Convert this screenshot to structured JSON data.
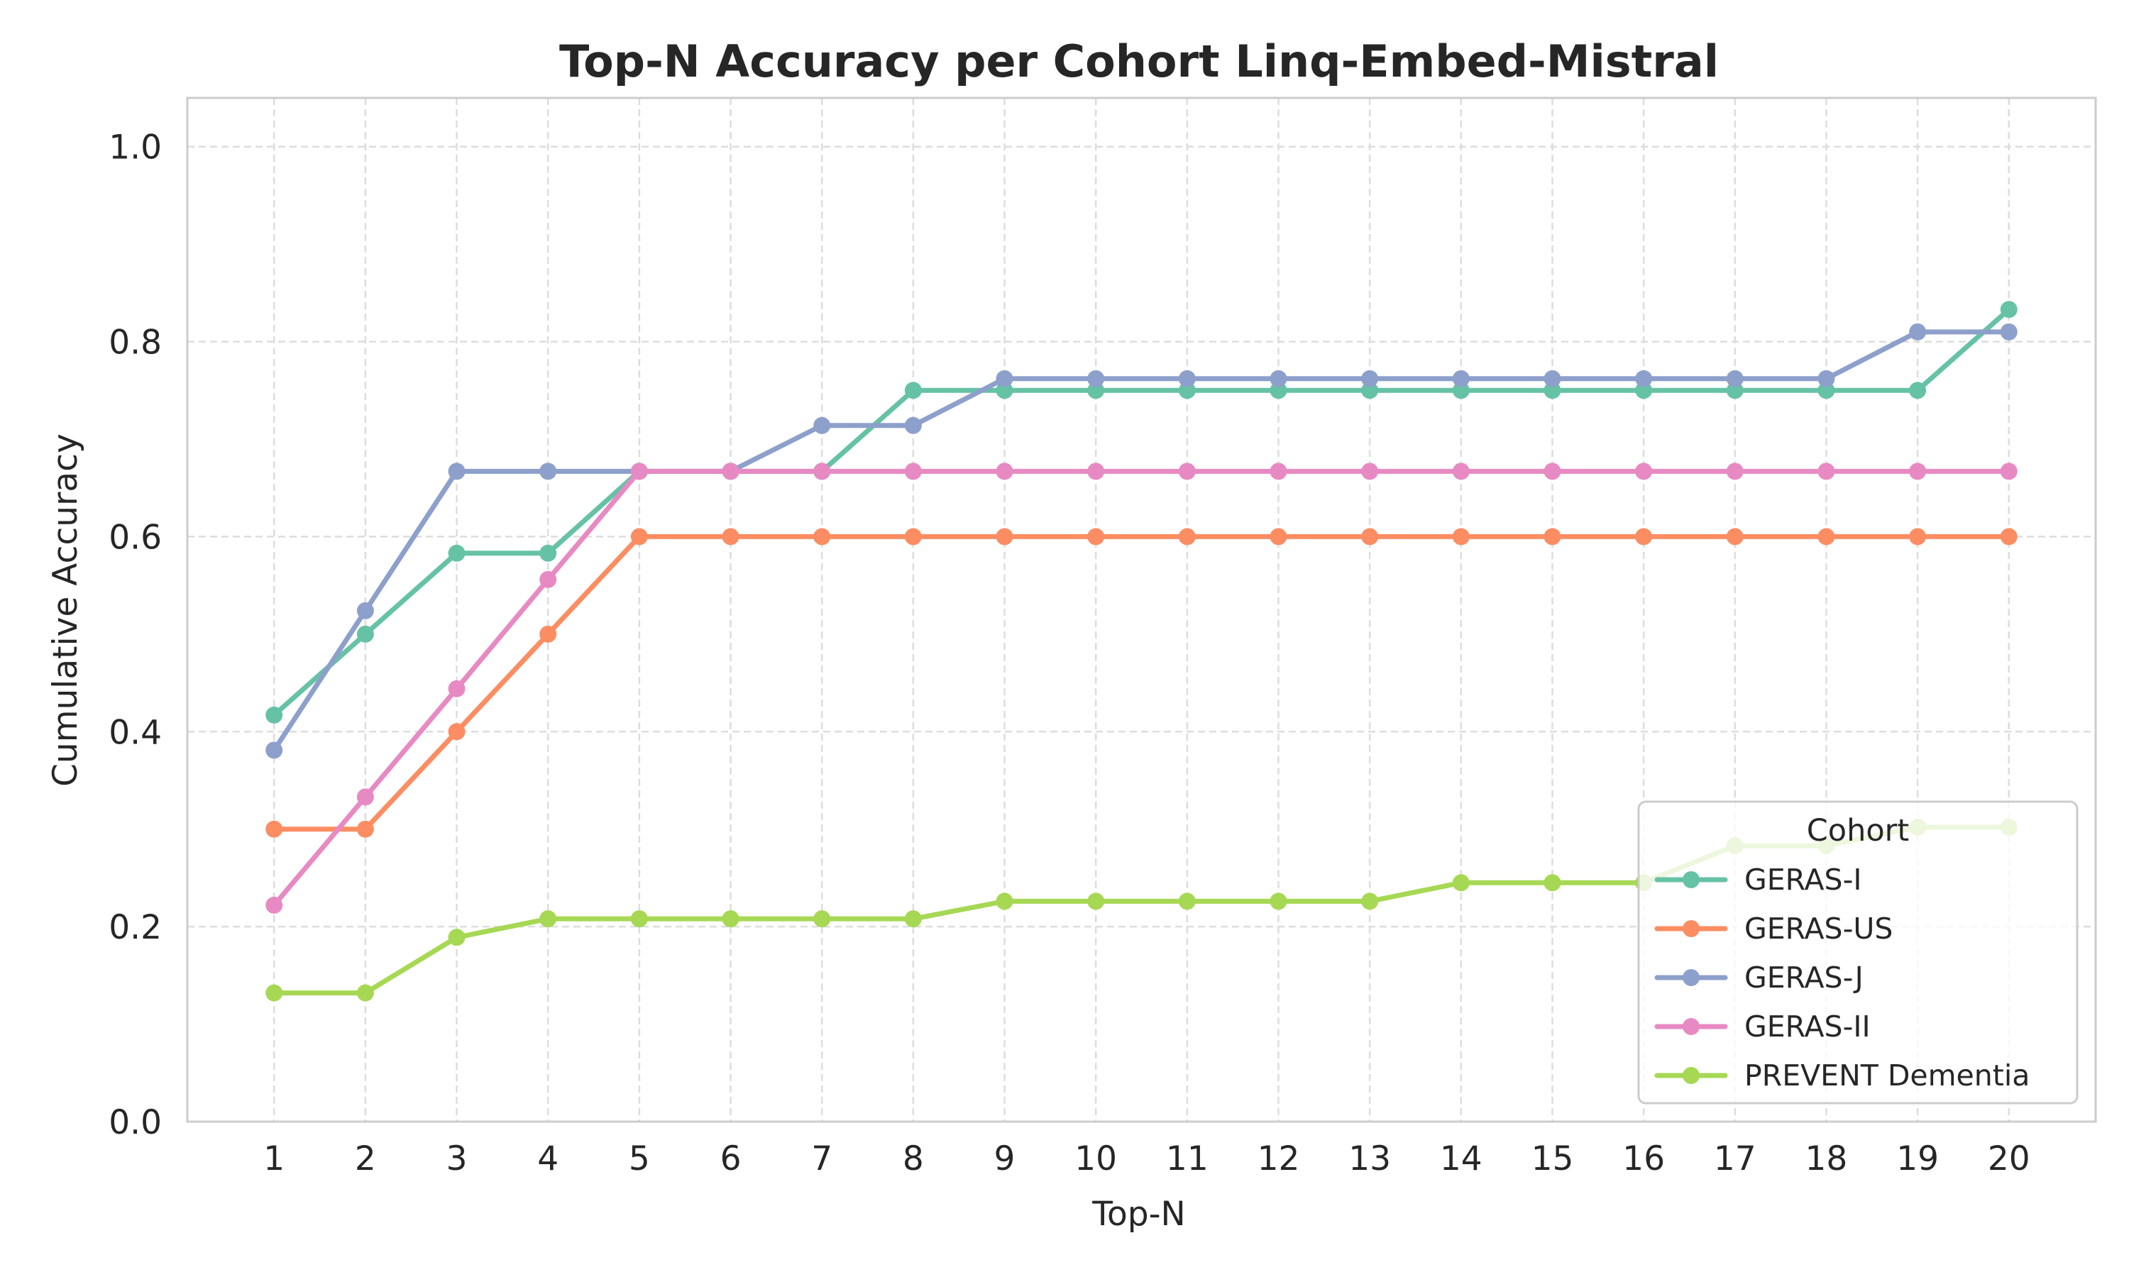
{
  "chart_data": {
    "type": "line",
    "title": "Top-N Accuracy per Cohort Linq-Embed-Mistral",
    "xlabel": "Top-N",
    "ylabel": "Cumulative Accuracy",
    "x": [
      1,
      2,
      3,
      4,
      5,
      6,
      7,
      8,
      9,
      10,
      11,
      12,
      13,
      14,
      15,
      16,
      17,
      18,
      19,
      20
    ],
    "x_tick_labels": [
      "1",
      "2",
      "3",
      "4",
      "5",
      "6",
      "7",
      "8",
      "9",
      "10",
      "11",
      "12",
      "13",
      "14",
      "15",
      "16",
      "17",
      "18",
      "19",
      "20"
    ],
    "y_tick_labels": [
      "0.0",
      "0.2",
      "0.4",
      "0.6",
      "0.8",
      "1.0"
    ],
    "ylim": [
      0,
      1.05
    ],
    "xlim": [
      0.05,
      20.95
    ],
    "grid": true,
    "legend": {
      "title": "Cohort",
      "placement": "lower-right"
    },
    "series": [
      {
        "name": "GERAS-I",
        "color": "#66c2a5",
        "values": [
          0.417,
          0.5,
          0.583,
          0.583,
          0.667,
          0.667,
          0.667,
          0.75,
          0.75,
          0.75,
          0.75,
          0.75,
          0.75,
          0.75,
          0.75,
          0.75,
          0.75,
          0.75,
          0.75,
          0.833
        ]
      },
      {
        "name": "GERAS-US",
        "color": "#fc8d62",
        "values": [
          0.3,
          0.3,
          0.4,
          0.5,
          0.6,
          0.6,
          0.6,
          0.6,
          0.6,
          0.6,
          0.6,
          0.6,
          0.6,
          0.6,
          0.6,
          0.6,
          0.6,
          0.6,
          0.6,
          0.6
        ]
      },
      {
        "name": "GERAS-J",
        "color": "#8da0cb",
        "values": [
          0.381,
          0.524,
          0.667,
          0.667,
          0.667,
          0.667,
          0.714,
          0.714,
          0.762,
          0.762,
          0.762,
          0.762,
          0.762,
          0.762,
          0.762,
          0.762,
          0.762,
          0.762,
          0.81,
          0.81
        ]
      },
      {
        "name": "GERAS-II",
        "color": "#e78ac3",
        "values": [
          0.222,
          0.333,
          0.444,
          0.556,
          0.667,
          0.667,
          0.667,
          0.667,
          0.667,
          0.667,
          0.667,
          0.667,
          0.667,
          0.667,
          0.667,
          0.667,
          0.667,
          0.667,
          0.667,
          0.667
        ]
      },
      {
        "name": "PREVENT Dementia",
        "color": "#a6d854",
        "values": [
          0.132,
          0.132,
          0.189,
          0.208,
          0.208,
          0.208,
          0.208,
          0.208,
          0.226,
          0.226,
          0.226,
          0.226,
          0.226,
          0.245,
          0.245,
          0.245,
          0.283,
          0.283,
          0.302,
          0.302
        ]
      }
    ]
  }
}
